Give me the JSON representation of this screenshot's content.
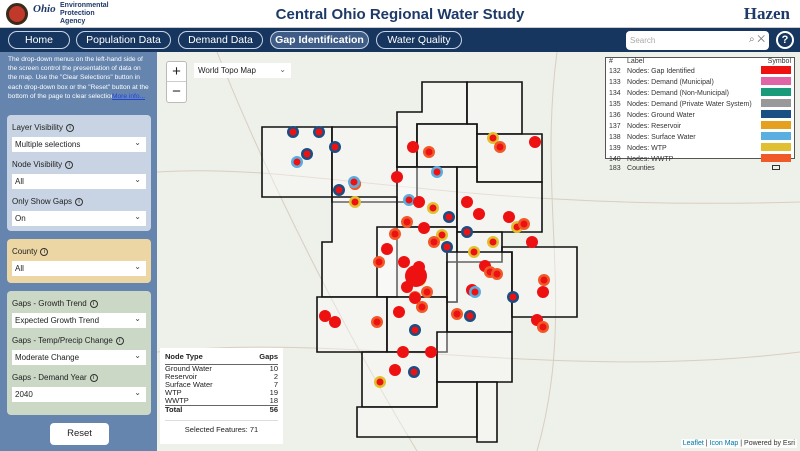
{
  "header": {
    "title": "Central Ohio Regional Water Study",
    "agency_logo_text": "Environmental Protection Agency",
    "ohio_logo": "Ohio",
    "brand": "Hazen"
  },
  "nav": {
    "tabs": [
      {
        "label": "Home"
      },
      {
        "label": "Population Data"
      },
      {
        "label": "Demand Data"
      },
      {
        "label": "Gap Identification",
        "active": true
      },
      {
        "label": "Water Quality"
      }
    ],
    "search_placeholder": "Search",
    "help_label": "?"
  },
  "sidebar": {
    "intro": "The drop-down menus on the left-hand side of the screen control the presentation of data on the map. Use the \"Clear Selections\" button in each drop-down box or the \"Reset\" button at the bottom of the page to clear selections.",
    "more_info": "More info...",
    "filters": [
      {
        "label": "Layer Visibility",
        "value": "Multiple selections"
      },
      {
        "label": "Node Visibility",
        "value": "All"
      },
      {
        "label": "Only Show Gaps",
        "value": "On"
      },
      {
        "label": "County",
        "value": "All"
      },
      {
        "label": "Gaps - Growth Trend",
        "value": "Expected Growth Trend"
      },
      {
        "label": "Gaps - Temp/Precip Change",
        "value": "Moderate Change"
      },
      {
        "label": "Gaps - Demand Year",
        "value": "2040"
      }
    ],
    "reset_label": "Reset"
  },
  "map": {
    "basemap": "World Topo Map",
    "zoom_in": "+",
    "zoom_out": "−",
    "legend": {
      "headers": [
        "#",
        "Label",
        "Symbol"
      ],
      "rows": [
        {
          "id": "132",
          "label": "Nodes: Gap Identified",
          "color": "#ee1111"
        },
        {
          "id": "133",
          "label": "Nodes: Demand (Municipal)",
          "color": "#e064a8"
        },
        {
          "id": "134",
          "label": "Nodes: Demand (Non-Municipal)",
          "color": "#199a7a"
        },
        {
          "id": "135",
          "label": "Nodes: Demand (Private Water System)",
          "color": "#999999"
        },
        {
          "id": "136",
          "label": "Nodes: Ground Water",
          "color": "#1a4f84"
        },
        {
          "id": "137",
          "label": "Nodes: Reservoir",
          "color": "#e6a020"
        },
        {
          "id": "138",
          "label": "Nodes: Surface Water",
          "color": "#5aaee0"
        },
        {
          "id": "139",
          "label": "Nodes: WTP",
          "color": "#e0c030"
        },
        {
          "id": "140",
          "label": "Nodes: WWTP",
          "color": "#f05a28"
        },
        {
          "id": "183",
          "label": "Counties",
          "color": "outline"
        }
      ]
    },
    "gaps_table": {
      "headers": [
        "Node Type",
        "Gaps"
      ],
      "rows": [
        {
          "type": "Ground Water",
          "gaps": "10"
        },
        {
          "type": "Reservoir",
          "gaps": "2"
        },
        {
          "type": "Surface Water",
          "gaps": "7"
        },
        {
          "type": "WTP",
          "gaps": "19"
        },
        {
          "type": "WWTP",
          "gaps": "18"
        }
      ],
      "total_label": "Total",
      "total": "56",
      "selected_features": "Selected Features: 71"
    },
    "attribution": {
      "leaflet": "Leaflet",
      "sep": " | ",
      "iconmap": "Icon Map",
      "powered": " | Powered by Esri"
    }
  }
}
